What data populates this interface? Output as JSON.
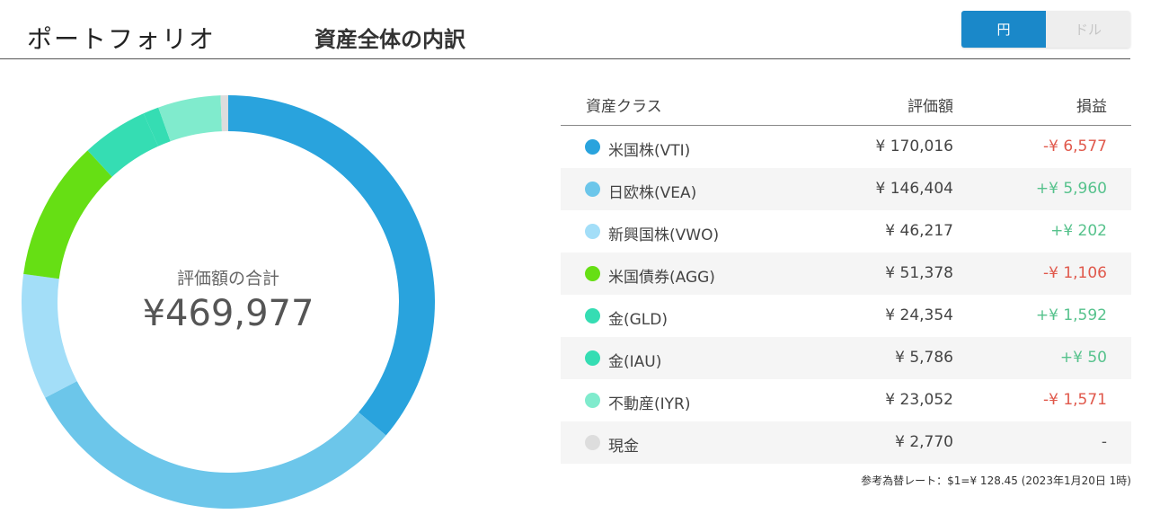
{
  "header": {
    "app_title": "ポートフォリオ",
    "page_title": "資産全体の内訳"
  },
  "currency_toggle": {
    "yen_label": "円",
    "dollar_label": "ドル",
    "selected": "円"
  },
  "donut": {
    "caption": "評価額の合計",
    "total": "¥469,977"
  },
  "table": {
    "headers": {
      "asset_class": "資産クラス",
      "value": "評価額",
      "profit_loss": "損益"
    },
    "rows": [
      {
        "name": "米国株(VTI)",
        "value": "¥ 170,016",
        "pl": "-¥ 6,577",
        "pl_sign": "neg",
        "color": "#29a3dd"
      },
      {
        "name": "日欧株(VEA)",
        "value": "¥ 146,404",
        "pl": "+¥ 5,960",
        "pl_sign": "pos",
        "color": "#6cc6ea"
      },
      {
        "name": "新興国株(VWO)",
        "value": "¥ 46,217",
        "pl": "+¥ 202",
        "pl_sign": "pos",
        "color": "#a3def8"
      },
      {
        "name": "米国債券(AGG)",
        "value": "¥ 51,378",
        "pl": "-¥ 1,106",
        "pl_sign": "neg",
        "color": "#66df14"
      },
      {
        "name": "金(GLD)",
        "value": "¥ 24,354",
        "pl": "+¥ 1,592",
        "pl_sign": "pos",
        "color": "#35ddb3"
      },
      {
        "name": "金(IAU)",
        "value": "¥ 5,786",
        "pl": "+¥ 50",
        "pl_sign": "pos",
        "color": "#35ddb3"
      },
      {
        "name": "不動産(IYR)",
        "value": "¥ 23,052",
        "pl": "-¥ 1,571",
        "pl_sign": "neg",
        "color": "#80ebcd"
      },
      {
        "name": "現金",
        "value": "¥ 2,770",
        "pl": "-",
        "pl_sign": "neutral",
        "color": "#dddddd"
      }
    ]
  },
  "footnote": "参考為替レート：$1=¥ 128.45 (2023年1月20日 1時)",
  "chart_data": {
    "type": "pie",
    "categories": [
      "米国株(VTI)",
      "日欧株(VEA)",
      "新興国株(VWO)",
      "米国債券(AGG)",
      "金(GLD)",
      "金(IAU)",
      "不動産(IYR)",
      "現金"
    ],
    "values": [
      170016,
      146404,
      46217,
      51378,
      24354,
      5786,
      23052,
      2770
    ],
    "colors": [
      "#29a3dd",
      "#6cc6ea",
      "#a3def8",
      "#66df14",
      "#35ddb3",
      "#35ddb3",
      "#80ebcd",
      "#dddddd"
    ]
  }
}
